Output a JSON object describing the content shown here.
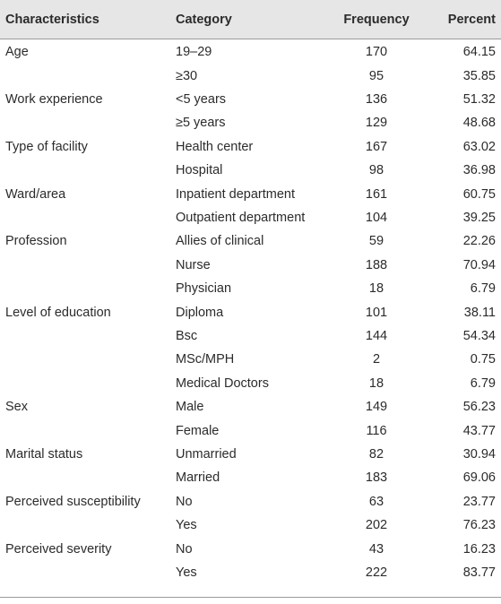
{
  "table": {
    "header": [
      "Characteristics",
      "Category",
      "Frequency",
      "Percent"
    ],
    "groups": [
      {
        "characteristic": "Age",
        "rows": [
          {
            "category": "19–29",
            "frequency": 170,
            "percent": 64.15
          },
          {
            "category": "≥30",
            "frequency": 95,
            "percent": 35.85
          }
        ]
      },
      {
        "characteristic": "Work experience",
        "rows": [
          {
            "category": "<5 years",
            "frequency": 136,
            "percent": 51.32
          },
          {
            "category": "≥5 years",
            "frequency": 129,
            "percent": 48.68
          }
        ]
      },
      {
        "characteristic": "Type of facility",
        "rows": [
          {
            "category": "Health center",
            "frequency": 167,
            "percent": 63.02
          },
          {
            "category": "Hospital",
            "frequency": 98,
            "percent": 36.98
          }
        ]
      },
      {
        "characteristic": "Ward/area",
        "rows": [
          {
            "category": "Inpatient department",
            "frequency": 161,
            "percent": 60.75
          },
          {
            "category": "Outpatient department",
            "frequency": 104,
            "percent": 39.25
          }
        ]
      },
      {
        "characteristic": "Profession",
        "rows": [
          {
            "category": "Allies of clinical",
            "frequency": 59,
            "percent": 22.26
          },
          {
            "category": "Nurse",
            "frequency": 188,
            "percent": 70.94
          },
          {
            "category": "Physician",
            "frequency": 18,
            "percent": 6.79
          }
        ]
      },
      {
        "characteristic": "Level of education",
        "rows": [
          {
            "category": "Diploma",
            "frequency": 101,
            "percent": 38.11
          },
          {
            "category": "Bsc",
            "frequency": 144,
            "percent": 54.34
          },
          {
            "category": "MSc/MPH",
            "frequency": 2,
            "percent": 0.75
          },
          {
            "category": "Medical Doctors",
            "frequency": 18,
            "percent": 6.79
          }
        ]
      },
      {
        "characteristic": "Sex",
        "rows": [
          {
            "category": "Male",
            "frequency": 149,
            "percent": 56.23
          },
          {
            "category": "Female",
            "frequency": 116,
            "percent": 43.77
          }
        ]
      },
      {
        "characteristic": "Marital status",
        "rows": [
          {
            "category": "Unmarried",
            "frequency": 82,
            "percent": 30.94
          },
          {
            "category": "Married",
            "frequency": 183,
            "percent": 69.06
          }
        ]
      },
      {
        "characteristic": "Perceived susceptibility",
        "rows": [
          {
            "category": "No",
            "frequency": 63,
            "percent": 23.77
          },
          {
            "category": "Yes",
            "frequency": 202,
            "percent": 76.23
          }
        ]
      },
      {
        "characteristic": "Perceived severity",
        "rows": [
          {
            "category": "No",
            "frequency": 43,
            "percent": 16.23
          },
          {
            "category": "Yes",
            "frequency": 222,
            "percent": 83.77
          }
        ]
      }
    ]
  }
}
